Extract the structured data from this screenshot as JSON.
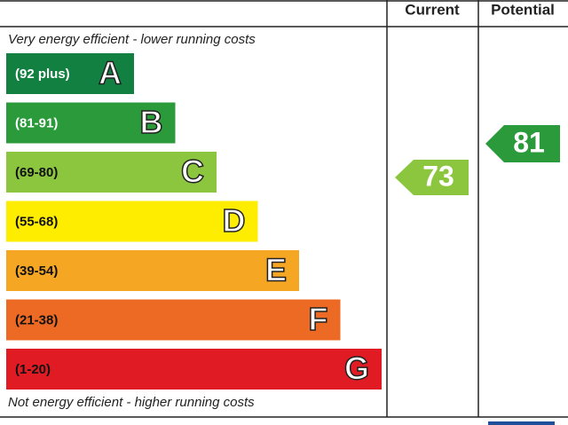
{
  "header": {
    "current": "Current",
    "potential": "Potential"
  },
  "top_note": "Very energy efficient - lower running costs",
  "bottom_note": "Not energy efficient - higher running costs",
  "bands": [
    {
      "range": "(92 plus)",
      "letter": "A",
      "color": "#128040",
      "text_color": "#ffffff"
    },
    {
      "range": "(81-91)",
      "letter": "B",
      "color": "#2a9a3a",
      "text_color": "#ffffff"
    },
    {
      "range": "(69-80)",
      "letter": "C",
      "color": "#8cc63f",
      "text_color": "#111111"
    },
    {
      "range": "(55-68)",
      "letter": "D",
      "color": "#ffed00",
      "text_color": "#111111"
    },
    {
      "range": "(39-54)",
      "letter": "E",
      "color": "#f5a623",
      "text_color": "#111111"
    },
    {
      "range": "(21-38)",
      "letter": "F",
      "color": "#ec6a23",
      "text_color": "#111111"
    },
    {
      "range": "(1-20)",
      "letter": "G",
      "color": "#e01b24",
      "text_color": "#111111"
    }
  ],
  "current": {
    "value": 73,
    "color": "#8cc63f"
  },
  "potential": {
    "value": 81,
    "color": "#2a9a3a"
  }
}
